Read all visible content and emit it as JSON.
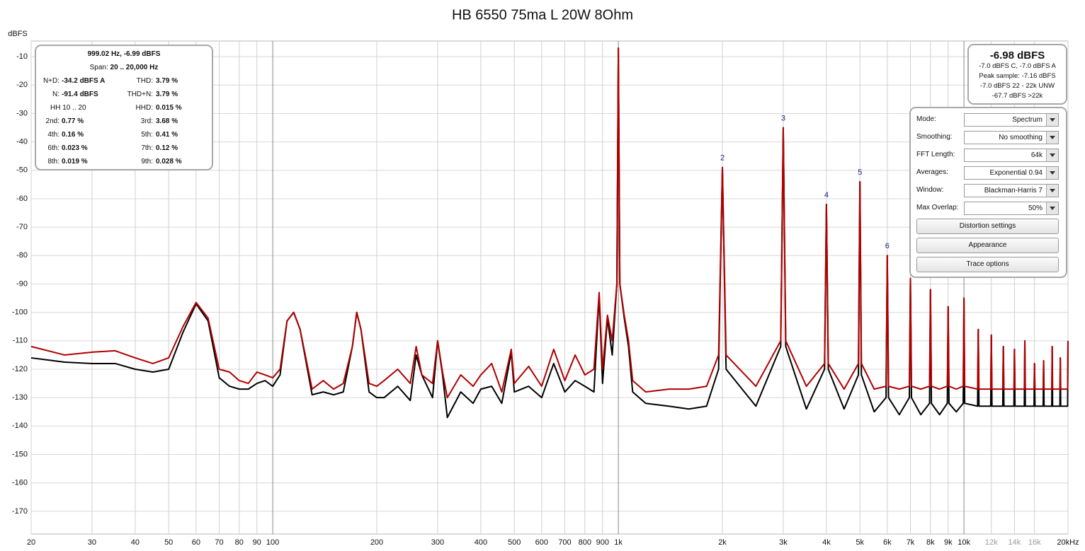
{
  "chart_data": {
    "type": "line",
    "title": "HB 6550 75ma L 20W 8Ohm",
    "y_label": "dBFS",
    "xscale": "log",
    "grid": true,
    "xlim": [
      20,
      20000
    ],
    "ylim": [
      -178,
      -4.5
    ],
    "yticks": [
      -10,
      -20,
      -30,
      -40,
      -50,
      -60,
      -70,
      -80,
      -90,
      -100,
      -110,
      -120,
      -130,
      -140,
      -150,
      -160,
      -170
    ],
    "xticks": [
      20,
      30,
      40,
      50,
      60,
      70,
      80,
      90,
      100,
      200,
      300,
      400,
      500,
      600,
      700,
      800,
      900,
      {
        "value": 1000,
        "label": "1k"
      },
      {
        "value": 2000,
        "label": "2k"
      },
      {
        "value": 3000,
        "label": "3k"
      },
      {
        "value": 4000,
        "label": "4k"
      },
      {
        "value": 5000,
        "label": "5k"
      },
      {
        "value": 6000,
        "label": "6k"
      },
      {
        "value": 7000,
        "label": "7k"
      },
      {
        "value": 8000,
        "label": "8k"
      },
      {
        "value": 9000,
        "label": "9k"
      },
      {
        "value": 10000,
        "label": "10k"
      },
      {
        "value": 12000,
        "label": "12k",
        "color": "#9a9a9a"
      },
      {
        "value": 14000,
        "label": "14k",
        "color": "#9a9a9a"
      },
      {
        "value": 16000,
        "label": "16k",
        "color": "#9a9a9a"
      },
      {
        "value": 20000,
        "label": "20kHz"
      }
    ],
    "x": [
      20,
      25,
      30,
      35,
      40,
      45,
      50,
      55,
      60,
      65,
      70,
      75,
      80,
      85,
      90,
      95,
      100,
      105,
      110,
      115,
      120,
      130,
      140,
      150,
      160,
      170,
      175,
      180,
      190,
      200,
      210,
      230,
      250,
      260,
      270,
      290,
      300,
      310,
      320,
      350,
      380,
      400,
      430,
      460,
      490,
      500,
      550,
      600,
      650,
      700,
      750,
      800,
      850,
      880,
      900,
      930,
      960,
      990,
      1000,
      1010,
      1040,
      1070,
      1100,
      1200,
      1400,
      1600,
      1800,
      1950,
      2000,
      2050,
      2500,
      2950,
      3000,
      3050,
      3500,
      3950,
      4000,
      4050,
      4500,
      4950,
      5000,
      5050,
      5500,
      5950,
      6000,
      6050,
      6500,
      6950,
      7000,
      7050,
      7500,
      7950,
      8000,
      8050,
      8500,
      8950,
      9000,
      9050,
      9500,
      9950,
      10000,
      10050,
      10950,
      11000,
      11050,
      11950,
      12000,
      12050,
      12950,
      13000,
      13050,
      13950,
      14000,
      14050,
      14950,
      15000,
      15050,
      15950,
      16000,
      16050,
      16950,
      17000,
      17050,
      17950,
      18000,
      18050,
      18950,
      19000,
      19050,
      19950,
      20000
    ],
    "series": [
      {
        "color": "#000000",
        "values": [
          -116,
          -117.5,
          -118,
          -118,
          -120,
          -121,
          -120,
          -107,
          -97,
          -103,
          -123,
          -126,
          -127,
          -127,
          -125,
          -124,
          -126,
          -122,
          -103,
          -100,
          -106,
          -129,
          -128,
          -129,
          -128,
          -112,
          -100,
          -106,
          -128,
          -130,
          -130,
          -126,
          -131,
          -115,
          -122,
          -130,
          -110,
          -122,
          -137,
          -128,
          -132,
          -127,
          -126,
          -132,
          -114,
          -128,
          -126,
          -130,
          -118,
          -128,
          -124,
          -126,
          -128,
          -94,
          -125,
          -102,
          -115,
          -90,
          -7,
          -90,
          -102,
          -112,
          -128,
          -132,
          -133,
          -134,
          -133,
          -120,
          -49,
          -120,
          -133,
          -112,
          -35,
          -112,
          -134,
          -120,
          -62,
          -120,
          -134,
          -122,
          -54,
          -122,
          -135,
          -130,
          -80,
          -130,
          -136,
          -130,
          -88,
          -130,
          -136,
          -132,
          -92,
          -132,
          -136,
          -132,
          -98,
          -132,
          -135,
          -132,
          -95,
          -132,
          -133,
          -106,
          -133,
          -133,
          -108,
          -133,
          -133,
          -112,
          -133,
          -133,
          -113,
          -133,
          -133,
          -110,
          -133,
          -133,
          -118,
          -133,
          -133,
          -117,
          -133,
          -133,
          -112,
          -133,
          -133,
          -116,
          -133,
          -133,
          -110
        ]
      },
      {
        "color": "#b00000",
        "values": [
          -112,
          -115,
          -114,
          -113.5,
          -116,
          -118,
          -116,
          -105,
          -96.5,
          -102,
          -120,
          -121,
          -124,
          -125,
          -121,
          -122,
          -123,
          -120,
          -103,
          -100,
          -106,
          -127,
          -124,
          -127,
          -125,
          -112,
          -100,
          -106,
          -125,
          -126,
          -124,
          -120,
          -125,
          -112,
          -122,
          -125,
          -110,
          -121,
          -130,
          -122,
          -126,
          -122,
          -118,
          -128,
          -113,
          -125,
          -119,
          -126,
          -113,
          -124,
          -115,
          -122,
          -120,
          -93,
          -120,
          -101,
          -110,
          -90,
          -7,
          -90,
          -101,
          -110,
          -124,
          -128,
          -127,
          -127,
          -126,
          -115,
          -49,
          -115,
          -126,
          -110,
          -35,
          -110,
          -126,
          -118,
          -62,
          -118,
          -127,
          -118,
          -54,
          -118,
          -127,
          -126,
          -80,
          -126,
          -127,
          -126,
          -88,
          -126,
          -127,
          -126,
          -92,
          -126,
          -127,
          -126,
          -98,
          -126,
          -127,
          -126,
          -95,
          -126,
          -127,
          -106,
          -127,
          -127,
          -108,
          -127,
          -127,
          -112,
          -127,
          -127,
          -113,
          -127,
          -127,
          -110,
          -127,
          -127,
          -118,
          -127,
          -127,
          -117,
          -127,
          -127,
          -112,
          -127,
          -127,
          -116,
          -127,
          -127,
          -110
        ]
      }
    ],
    "annotations": [
      {
        "text": "2",
        "x": 2000,
        "y": -49
      },
      {
        "text": "3",
        "x": 3000,
        "y": -35
      },
      {
        "text": "4",
        "x": 4000,
        "y": -62
      },
      {
        "text": "5",
        "x": 5000,
        "y": -54
      },
      {
        "text": "6",
        "x": 6000,
        "y": -80
      }
    ]
  },
  "info_panel": {
    "header": "999.02 Hz, -6.99 dBFS",
    "span_label": "Span:",
    "span_value": "20 .. 20,000 Hz",
    "rows": [
      [
        [
          "N+D:",
          "-34.2 dBFS A"
        ],
        [
          "THD:",
          "3.79 %"
        ]
      ],
      [
        [
          "N:",
          "-91.4 dBFS"
        ],
        [
          "THD+N:",
          "3.79 %"
        ]
      ],
      [
        [
          "HH 10 .. 20"
        ],
        [
          "HHD:",
          "0.015 %"
        ]
      ],
      [
        [
          "2nd:",
          "0.77 %"
        ],
        [
          "3rd:",
          "3.68 %"
        ]
      ],
      [
        [
          "4th:",
          "0.16 %"
        ],
        [
          "5th:",
          "0.41 %"
        ]
      ],
      [
        [
          "6th:",
          "0.023 %"
        ],
        [
          "7th:",
          "0.12 %"
        ]
      ],
      [
        [
          "8th:",
          "0.019 %"
        ],
        [
          "9th:",
          "0.028 %"
        ]
      ]
    ]
  },
  "level_panel": {
    "level": "-6.98 dBFS",
    "lines": [
      "-7.0 dBFS C, -7.0 dBFS A",
      "Peak sample: -7.16 dBFS",
      "-7.0 dBFS 22 - 22k UNW",
      "-67.7 dBFS >22k"
    ]
  },
  "control_panel": {
    "settings": [
      [
        "Mode:",
        "Spectrum"
      ],
      [
        "Smoothing:",
        "No  smoothing"
      ],
      [
        "FFT Length:",
        "64k"
      ],
      [
        "Averages:",
        "Exponential 0.94"
      ],
      [
        "Window:",
        "Blackman-Harris 7"
      ],
      [
        "Max Overlap:",
        "50%"
      ]
    ],
    "buttons": [
      "Distortion settings",
      "Appearance",
      "Trace options"
    ]
  }
}
